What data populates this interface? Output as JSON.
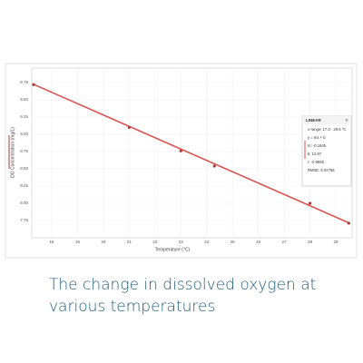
{
  "chart_data": {
    "type": "scatter",
    "x_label": "Temperature (°C)",
    "y_label": "DO Concentration (mg/L)",
    "x": [
      17.3,
      21,
      23,
      24.3,
      28,
      29.5
    ],
    "series": [
      {
        "name": "DO",
        "color": "#b03a3a",
        "values": [
          9.72,
          9.1,
          8.76,
          8.54,
          8.0,
          7.71
        ]
      }
    ],
    "xlim": [
      17.23,
      29.63
    ],
    "xticks": [
      18,
      19,
      20,
      21,
      22,
      23,
      24,
      25,
      26,
      27,
      28,
      29
    ],
    "ylim": [
      7.5,
      9.96
    ],
    "yticks": [
      {
        "value": 7.75,
        "label": "7.75"
      },
      {
        "value": 8,
        "label": "8.00"
      },
      {
        "value": 8.25,
        "label": "8.25"
      },
      {
        "value": 8.5,
        "label": "8.50"
      },
      {
        "value": 8.75,
        "label": "8.75"
      },
      {
        "value": 9,
        "label": "9.00"
      },
      {
        "value": 9.25,
        "label": "9.25"
      },
      {
        "value": 9.5,
        "label": "9.50"
      },
      {
        "value": 9.75,
        "label": "9.75"
      }
    ],
    "grid": true,
    "fit": {
      "color": "#d9534f",
      "m": -0.1645,
      "b": 12.57,
      "title": "LINEAR",
      "close": "×",
      "lines": [
        "x-range: 17.3 - 29.5 °C",
        "y = mx + b",
        "m: -0.1645",
        "b: 12.57",
        "r: -0.9965",
        "RMSE: 0.02756"
      ]
    }
  },
  "caption": "The change in dissolved oxygen at various temperatures"
}
